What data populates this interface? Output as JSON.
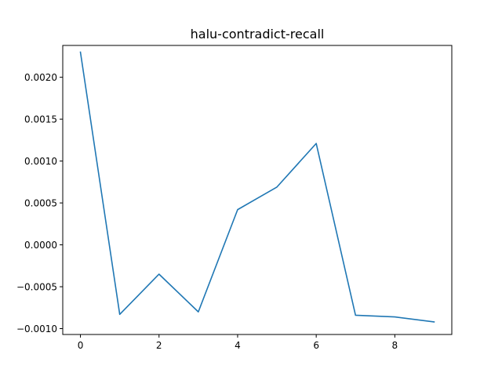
{
  "chart_data": {
    "type": "line",
    "title": "halu-contradict-recall",
    "xlabel": "",
    "ylabel": "",
    "xlim": [
      -0.45,
      9.45
    ],
    "ylim": [
      -0.00107,
      0.00238
    ],
    "xticks": [
      0,
      2,
      4,
      6,
      8
    ],
    "xtick_labels": [
      "0",
      "2",
      "4",
      "6",
      "8"
    ],
    "yticks": [
      -0.001,
      -0.0005,
      0.0,
      0.0005,
      0.001,
      0.0015,
      0.002
    ],
    "ytick_labels": [
      "−0.0010",
      "−0.0005",
      "0.0000",
      "0.0005",
      "0.0010",
      "0.0015",
      "0.0020"
    ],
    "grid": false,
    "legend": false,
    "series": [
      {
        "color": "#1f77b4",
        "x": [
          0,
          1,
          2,
          3,
          4,
          5,
          6,
          7,
          8,
          9
        ],
        "y": [
          0.0023,
          -0.00083,
          -0.00035,
          -0.0008,
          0.00042,
          0.00069,
          0.00121,
          -0.00084,
          -0.00086,
          -0.00092
        ]
      }
    ]
  }
}
